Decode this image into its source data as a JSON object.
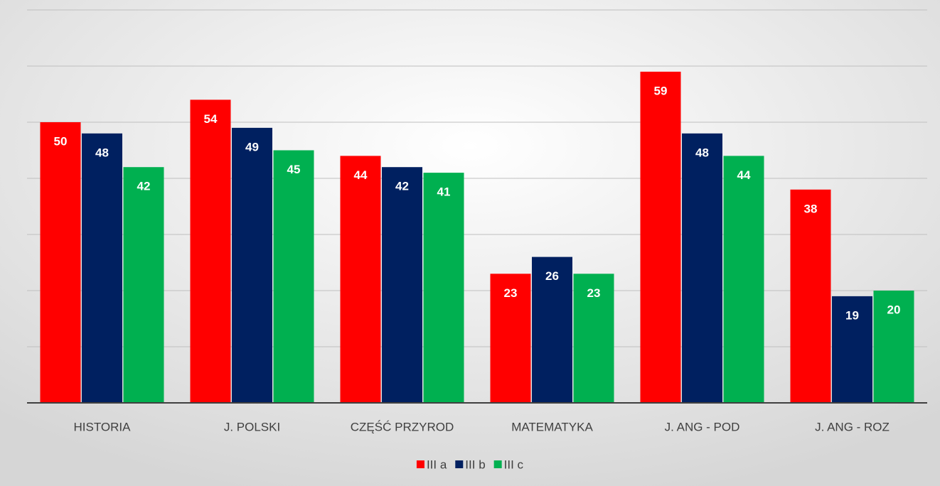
{
  "chart_data": {
    "type": "bar",
    "categories": [
      "HISTORIA",
      "J. POLSKI",
      "CZĘŚĆ PRZYROD",
      "MATEMATYKA",
      "J. ANG - POD",
      "J. ANG - ROZ"
    ],
    "series": [
      {
        "name": "III a",
        "color": "#ff0000",
        "values": [
          50,
          54,
          44,
          23,
          59,
          38
        ]
      },
      {
        "name": "III b",
        "color": "#002060",
        "values": [
          48,
          49,
          42,
          26,
          48,
          19
        ]
      },
      {
        "name": "III c",
        "color": "#00b050",
        "values": [
          42,
          45,
          41,
          23,
          44,
          20
        ]
      }
    ],
    "ylim": [
      0,
      70
    ],
    "yticks": [
      0,
      10,
      20,
      30,
      40,
      50,
      60,
      70
    ],
    "grid": true,
    "legend": "bottom"
  }
}
